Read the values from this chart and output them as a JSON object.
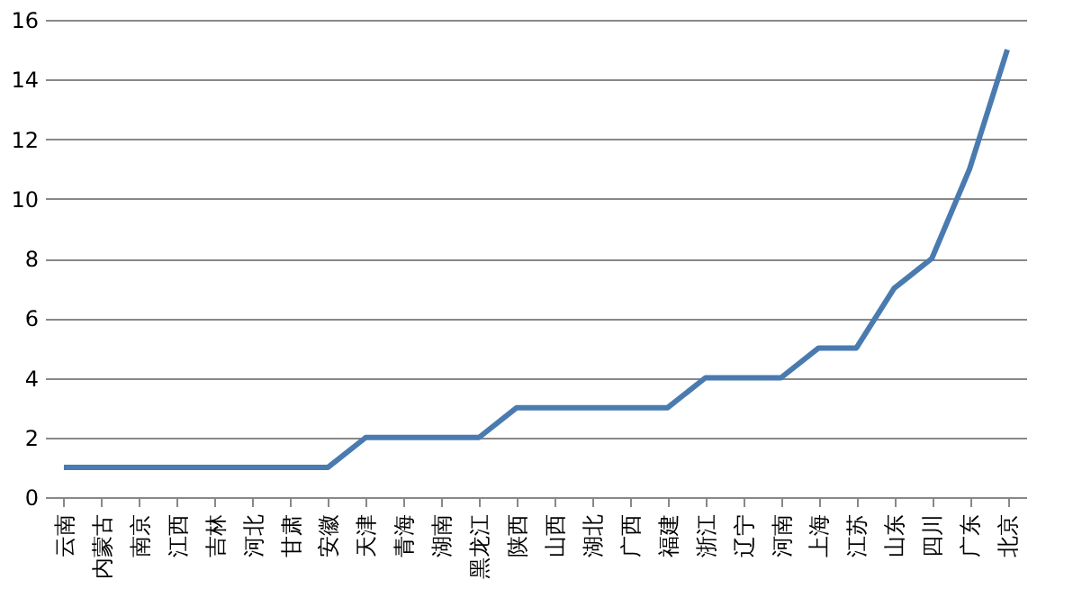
{
  "chart_data": {
    "type": "line",
    "categories": [
      "云南",
      "内蒙古",
      "南京",
      "江西",
      "吉林",
      "河北",
      "甘肃",
      "安徽",
      "天津",
      "青海",
      "湖南",
      "黑龙江",
      "陕西",
      "山西",
      "湖北",
      "广西",
      "福建",
      "浙江",
      "辽宁",
      "河南",
      "上海",
      "江苏",
      "山东",
      "四川",
      "广东",
      "北京"
    ],
    "series": [
      {
        "color": "#4a7bb0",
        "values": [
          1,
          1,
          1,
          1,
          1,
          1,
          1,
          1,
          2,
          2,
          2,
          2,
          3,
          3,
          3,
          3,
          3,
          4,
          4,
          4,
          5,
          5,
          7,
          8,
          11,
          15
        ]
      }
    ],
    "ylim": [
      0,
      16
    ],
    "yticks": [
      0,
      2,
      4,
      6,
      8,
      10,
      12,
      14,
      16
    ],
    "grid": "y",
    "marker": "none",
    "line_style": "solid"
  }
}
